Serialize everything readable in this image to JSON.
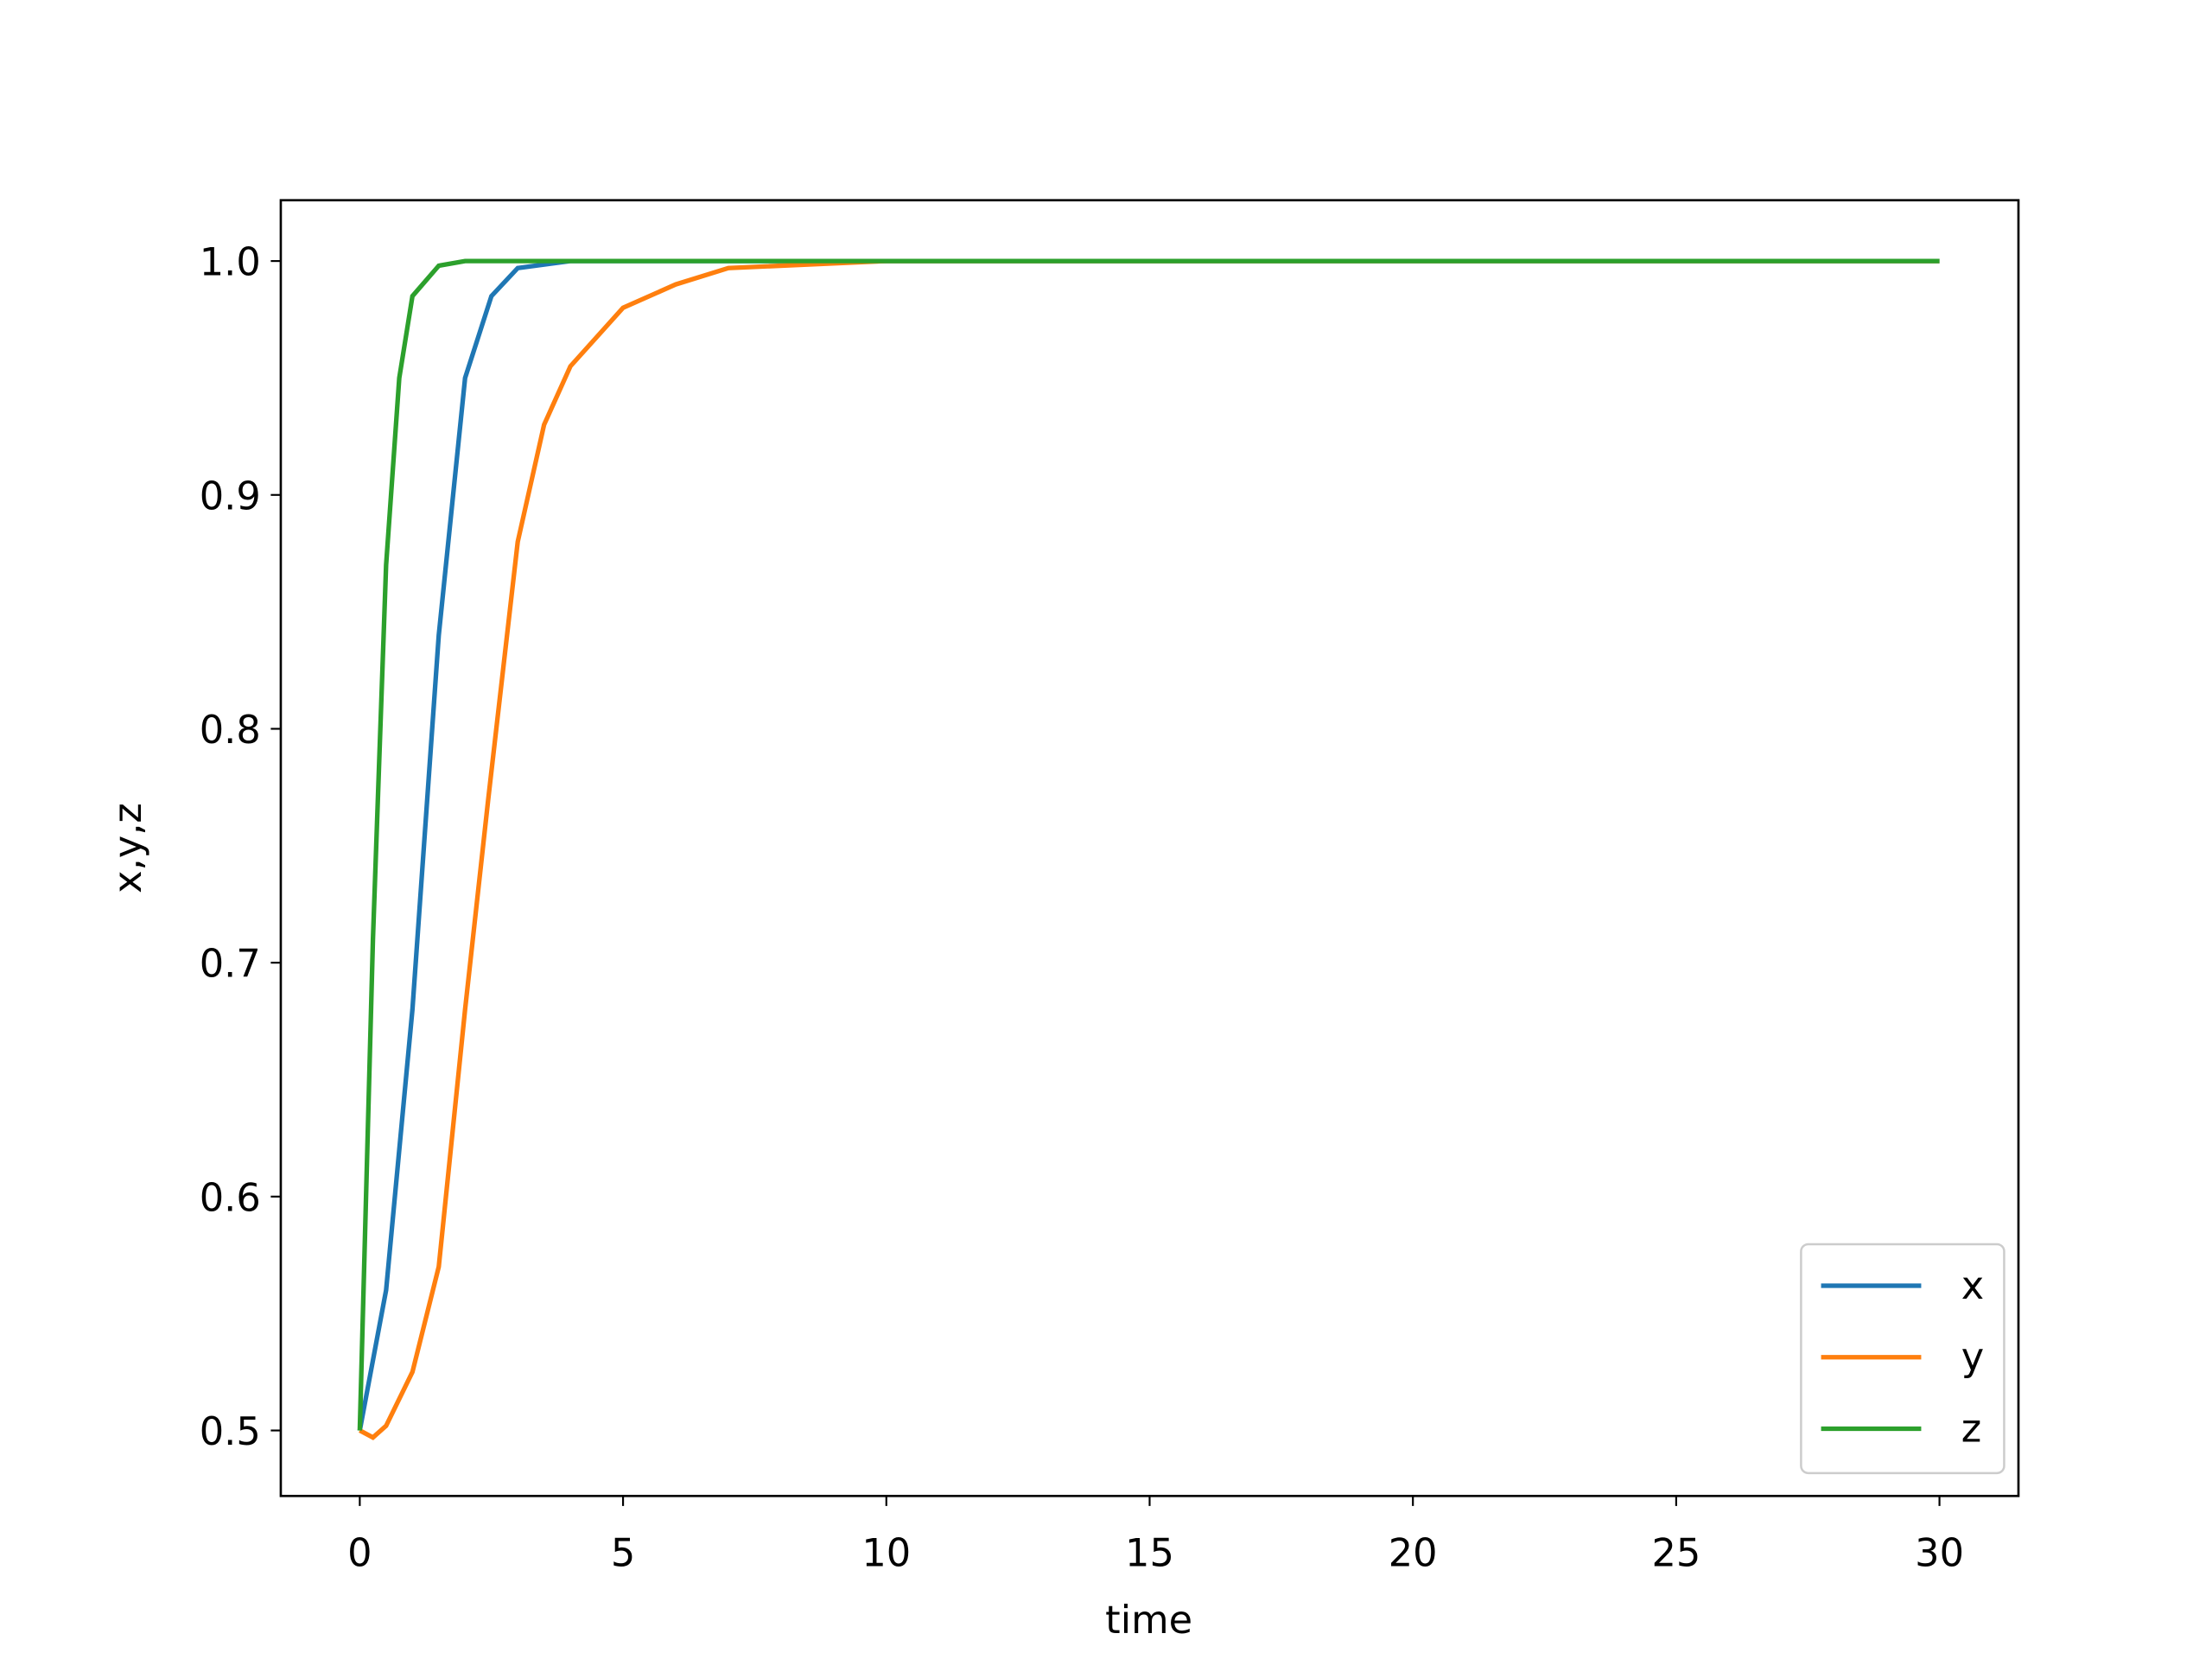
{
  "chart_data": {
    "type": "line",
    "xlabel": "time",
    "ylabel": "x,y,z",
    "xlim": [
      -1.5,
      31.5
    ],
    "ylim": [
      0.472,
      1.026
    ],
    "xticks": [
      0,
      5,
      10,
      15,
      20,
      25,
      30
    ],
    "yticks": [
      0.5,
      0.6,
      0.7,
      0.8,
      0.9,
      {
        "value": 1,
        "label": "1.0"
      }
    ],
    "legend": "lower right",
    "series": [
      {
        "name": "x",
        "color": "#1f77b4",
        "x": [
          0,
          0.5,
          1,
          1.5,
          2,
          2.5,
          3,
          4,
          30
        ],
        "values": [
          0.5,
          0.56,
          0.68,
          0.84,
          0.95,
          0.985,
          0.997,
          1,
          1
        ]
      },
      {
        "name": "y",
        "color": "#ff7f0e",
        "x": [
          0,
          0.25,
          0.5,
          1,
          1.5,
          2,
          2.44,
          3,
          3.5,
          4,
          5,
          6,
          7,
          10,
          30
        ],
        "values": [
          0.5,
          0.497,
          0.502,
          0.525,
          0.57,
          0.68,
          0.77,
          0.88,
          0.93,
          0.955,
          0.98,
          0.99,
          0.997,
          1,
          1
        ]
      },
      {
        "name": "z",
        "color": "#2ca02c",
        "x": [
          0,
          0.25,
          0.5,
          0.75,
          1,
          1.5,
          2,
          30
        ],
        "values": [
          0.5,
          0.71,
          0.87,
          0.95,
          0.985,
          0.998,
          1,
          1
        ]
      }
    ]
  }
}
